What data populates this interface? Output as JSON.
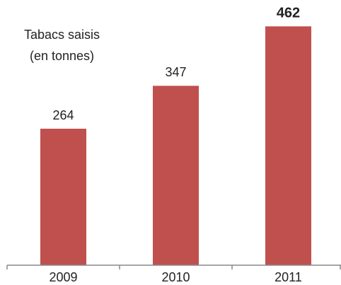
{
  "chart_data": {
    "type": "bar",
    "title": "Tabacs saisis",
    "subtitle": "(en tonnes)",
    "categories": [
      "2009",
      "2010",
      "2011"
    ],
    "values": [
      264,
      347,
      462
    ],
    "color": "#c0504d",
    "ylim": [
      0,
      500
    ]
  }
}
